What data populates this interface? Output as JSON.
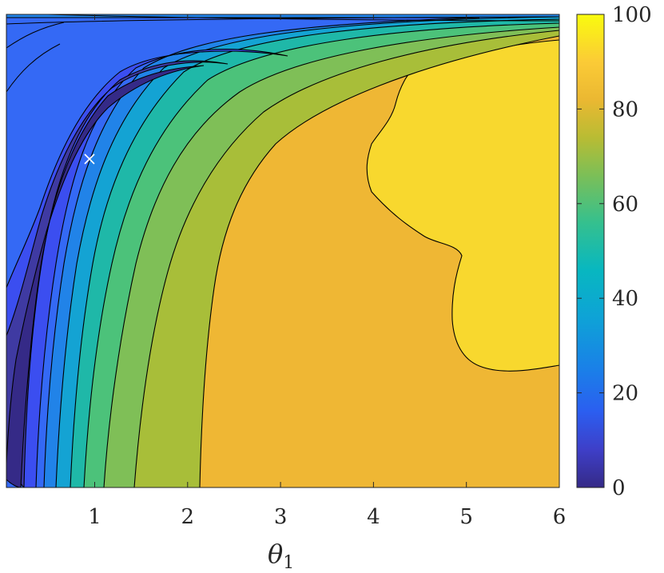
{
  "chart_data": {
    "type": "heatmap",
    "subtype": "filled-contour",
    "title": "",
    "xlabel": "θ",
    "xlabel_subscript": "1",
    "ylabel": "",
    "xlim": [
      0.05,
      6
    ],
    "x_ticks": [
      1,
      2,
      3,
      4,
      5,
      6
    ],
    "x_tick_labels": [
      "1",
      "2",
      "3",
      "4",
      "5",
      "6"
    ],
    "colorbar": {
      "limits": [
        0,
        100
      ],
      "ticks": [
        0,
        20,
        40,
        60,
        80,
        100
      ],
      "tick_labels": [
        "0",
        "20",
        "40",
        "60",
        "80",
        "100"
      ],
      "colormap": "parula"
    },
    "contour_levels": [
      0,
      8,
      16,
      24,
      32,
      40,
      48,
      56,
      64,
      72,
      80,
      88,
      100
    ],
    "marker": {
      "symbol": "×",
      "x": 1.0,
      "color": "#ffffff"
    },
    "grid": false,
    "colors": {
      "low": "#352a87",
      "high": "#f9fb0e",
      "plateau": "#efb734",
      "peak": "#f8d82e",
      "contour_line": "#000000"
    }
  }
}
